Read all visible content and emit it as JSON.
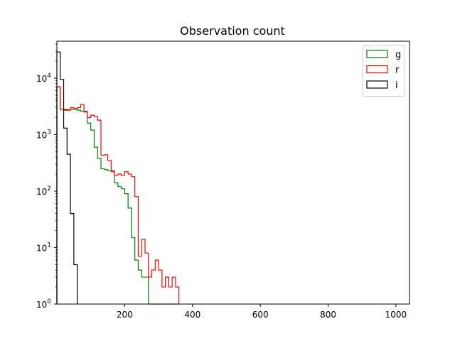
{
  "chart_data": {
    "type": "histogram-step",
    "title": "Observation count",
    "xlabel": "",
    "ylabel": "",
    "xscale": "linear",
    "yscale": "log",
    "xlim": [
      0,
      1040
    ],
    "ylim": [
      1,
      45000
    ],
    "x_ticks": [
      200,
      400,
      600,
      800,
      1000
    ],
    "y_ticks": [
      {
        "value": 1,
        "base": "10",
        "exp": "0"
      },
      {
        "value": 10,
        "base": "10",
        "exp": "1"
      },
      {
        "value": 100,
        "base": "10",
        "exp": "2"
      },
      {
        "value": 1000,
        "base": "10",
        "exp": "3"
      },
      {
        "value": 10000,
        "base": "10",
        "exp": "4"
      }
    ],
    "grid": false,
    "legend_placement": "top-right",
    "bin_edges": [
      0,
      10,
      20,
      30,
      40,
      50,
      60,
      70,
      80,
      90,
      100,
      110,
      120,
      130,
      140,
      150,
      160,
      170,
      180,
      190,
      200,
      210,
      220,
      230,
      240,
      250,
      260,
      270,
      280,
      290,
      300,
      310,
      320,
      330,
      340,
      350,
      360
    ],
    "series": [
      {
        "name": "g",
        "color": "#008000",
        "counts": [
          7000,
          2800,
          2700,
          2750,
          2800,
          2800,
          2700,
          2600,
          2600,
          1600,
          1200,
          600,
          380,
          250,
          240,
          230,
          230,
          140,
          120,
          110,
          90,
          50,
          15,
          6,
          4,
          3,
          3,
          1,
          1,
          1,
          1,
          1,
          1,
          1,
          1,
          1
        ]
      },
      {
        "name": "r",
        "color": "#ff0000",
        "counts": [
          7000,
          2800,
          2800,
          2700,
          3000,
          2900,
          3000,
          3400,
          2500,
          2000,
          2200,
          2100,
          1800,
          430,
          440,
          350,
          220,
          190,
          200,
          190,
          220,
          200,
          180,
          80,
          7,
          14,
          8,
          3,
          4,
          6,
          4,
          2,
          3,
          2,
          3,
          2
        ]
      },
      {
        "name": "i",
        "color": "#000000",
        "counts": [
          29000,
          9500,
          1300,
          450,
          40,
          5
        ]
      }
    ]
  }
}
